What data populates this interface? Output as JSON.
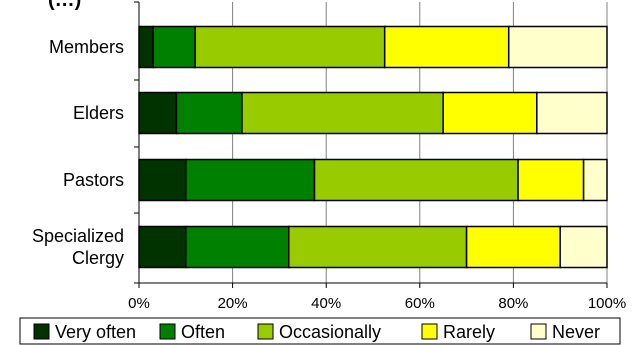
{
  "chart_data": {
    "type": "bar",
    "orientation": "horizontal",
    "stacked": true,
    "title_fragment": "(…)",
    "categories": [
      "Members",
      "Elders",
      "Pastors",
      "Specialized Clergy"
    ],
    "category_lines": [
      [
        "Members"
      ],
      [
        "Elders"
      ],
      [
        "Pastors"
      ],
      [
        "Specialized",
        "Clergy"
      ]
    ],
    "series": [
      {
        "name": "Very often",
        "color": "#003300",
        "values": [
          3,
          8,
          10,
          10
        ]
      },
      {
        "name": "Often",
        "color": "#008000",
        "values": [
          9,
          14,
          27.5,
          22
        ]
      },
      {
        "name": "Occasionally",
        "color": "#99cc00",
        "values": [
          40.5,
          43,
          43.5,
          38
        ]
      },
      {
        "name": "Rarely",
        "color": "#ffff00",
        "values": [
          26.5,
          20,
          14,
          20
        ]
      },
      {
        "name": "Never",
        "color": "#ffffcc",
        "values": [
          21,
          15,
          5,
          10
        ]
      }
    ],
    "xlim": [
      0,
      100
    ],
    "x_ticks": [
      "0%",
      "20%",
      "40%",
      "60%",
      "80%",
      "100%"
    ],
    "grid": true,
    "legend_placement": "bottom"
  }
}
